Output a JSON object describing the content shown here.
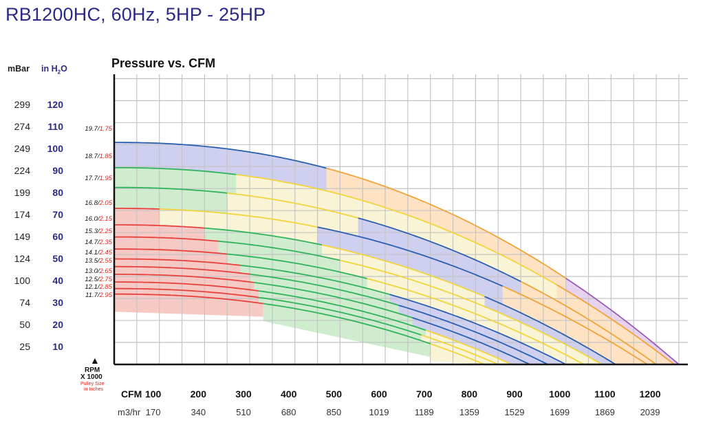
{
  "title": "RB1200HC, 60Hz, 5HP - 25HP",
  "subtitle": "Pressure vs. CFM",
  "y_axis": {
    "mbar_header": "mBar",
    "inh2o_header": "in H",
    "inh2o_sub": "2",
    "inh2o_tail": "O",
    "mbar_ticks": [
      "299",
      "274",
      "249",
      "224",
      "199",
      "174",
      "149",
      "124",
      "100",
      "74",
      "50",
      "25"
    ],
    "inh2o_ticks": [
      "120",
      "110",
      "100",
      "90",
      "80",
      "70",
      "60",
      "50",
      "40",
      "30",
      "20",
      "10"
    ]
  },
  "rpm_block": {
    "arrow": "▲",
    "rpm": "RPM",
    "x1000": "X 1000",
    "pulley1": "Pulley Size",
    "pulley2": "in Inches"
  },
  "x_axis": {
    "cfm_label": "CFM",
    "m3_label": "m3/hr",
    "cfm_ticks": [
      "100",
      "200",
      "300",
      "400",
      "500",
      "600",
      "700",
      "800",
      "900",
      "1000",
      "1100",
      "1200"
    ],
    "m3_ticks": [
      "170",
      "340",
      "510",
      "680",
      "850",
      "1019",
      "1189",
      "1359",
      "1529",
      "1699",
      "1869",
      "2039"
    ]
  },
  "chart_data": {
    "type": "line",
    "title": "Pressure vs. CFM",
    "xlabel": "CFM",
    "ylabel": "in H2O",
    "xlim": [
      0,
      1270
    ],
    "ylim": [
      0,
      132
    ],
    "grid": true,
    "zone_colors": {
      "red": "#e8413c",
      "green": "#2fb35a",
      "yellow": "#f2d43b",
      "blue": "#2a5fb0",
      "orange": "#f2a338",
      "purple": "#9b5bb5"
    },
    "zone_fills": {
      "red": "#f6c9c4",
      "green": "#cfeccf",
      "yellow": "#f8f4d5",
      "blue": "#cfcff0",
      "orange": "#fde2c4",
      "purple": "#e6d3ef"
    },
    "curve_labels": [
      {
        "rpm": "19.7",
        "pulley": "1.75"
      },
      {
        "rpm": "18.7",
        "pulley": "1.85"
      },
      {
        "rpm": "17.7",
        "pulley": "1.95"
      },
      {
        "rpm": "16.8",
        "pulley": "2.05"
      },
      {
        "rpm": "16.0",
        "pulley": "2.15"
      },
      {
        "rpm": "15.3",
        "pulley": "2.25"
      },
      {
        "rpm": "14.7",
        "pulley": "2.35"
      },
      {
        "rpm": "14.1",
        "pulley": "2.45"
      },
      {
        "rpm": "13.5",
        "pulley": "2.55"
      },
      {
        "rpm": "13.0",
        "pulley": "2.65"
      },
      {
        "rpm": "12.5",
        "pulley": "2.75"
      },
      {
        "rpm": "12.1",
        "pulley": "2.85"
      },
      {
        "rpm": "11.7",
        "pulley": "2.95"
      }
    ],
    "series": [
      {
        "p0": 101,
        "xmax": 1250,
        "segments": [
          [
            0,
            470,
            "blue"
          ],
          [
            470,
            1000,
            "orange"
          ],
          [
            1000,
            1250,
            "purple"
          ]
        ]
      },
      {
        "p0": 89.5,
        "xmax": 1240,
        "segments": [
          [
            0,
            270,
            "green"
          ],
          [
            270,
            980,
            "yellow"
          ],
          [
            980,
            1240,
            "orange"
          ]
        ]
      },
      {
        "p0": 80.5,
        "xmax": 1200,
        "segments": [
          [
            0,
            250,
            "green"
          ],
          [
            250,
            540,
            "yellow"
          ],
          [
            540,
            900,
            "blue"
          ],
          [
            900,
            1200,
            "orange"
          ]
        ]
      },
      {
        "p0": 71,
        "xmax": 1180,
        "segments": [
          [
            0,
            100,
            "red"
          ],
          [
            100,
            450,
            "yellow"
          ],
          [
            450,
            860,
            "blue"
          ],
          [
            860,
            1180,
            "orange"
          ]
        ]
      },
      {
        "p0": 63.5,
        "xmax": 1110,
        "segments": [
          [
            0,
            200,
            "red"
          ],
          [
            200,
            460,
            "green"
          ],
          [
            460,
            820,
            "yellow"
          ],
          [
            820,
            1110,
            "blue"
          ]
        ]
      },
      {
        "p0": 58,
        "xmax": 1080,
        "segments": [
          [
            0,
            230,
            "red"
          ],
          [
            230,
            500,
            "green"
          ],
          [
            500,
            1080,
            "yellow"
          ]
        ]
      },
      {
        "p0": 52.5,
        "xmax": 1040,
        "segments": [
          [
            0,
            250,
            "red"
          ],
          [
            250,
            560,
            "green"
          ],
          [
            560,
            1040,
            "yellow"
          ]
        ]
      },
      {
        "p0": 48,
        "xmax": 1000,
        "segments": [
          [
            0,
            280,
            "red"
          ],
          [
            280,
            610,
            "green"
          ],
          [
            610,
            1000,
            "blue"
          ]
        ]
      },
      {
        "p0": 44.5,
        "xmax": 960,
        "segments": [
          [
            0,
            300,
            "red"
          ],
          [
            300,
            630,
            "green"
          ],
          [
            630,
            960,
            "blue"
          ]
        ]
      },
      {
        "p0": 41,
        "xmax": 920,
        "segments": [
          [
            0,
            310,
            "red"
          ],
          [
            310,
            660,
            "green"
          ],
          [
            660,
            920,
            "blue"
          ]
        ]
      },
      {
        "p0": 37.5,
        "xmax": 880,
        "segments": [
          [
            0,
            320,
            "red"
          ],
          [
            320,
            690,
            "green"
          ],
          [
            690,
            880,
            "yellow"
          ]
        ]
      },
      {
        "p0": 34.5,
        "xmax": 850,
        "segments": [
          [
            0,
            320,
            "red"
          ],
          [
            320,
            680,
            "green"
          ],
          [
            680,
            850,
            "yellow"
          ]
        ]
      },
      {
        "p0": 32,
        "xmax": 820,
        "segments": [
          [
            0,
            330,
            "red"
          ],
          [
            330,
            700,
            "green"
          ],
          [
            700,
            820,
            "yellow"
          ]
        ]
      }
    ]
  }
}
